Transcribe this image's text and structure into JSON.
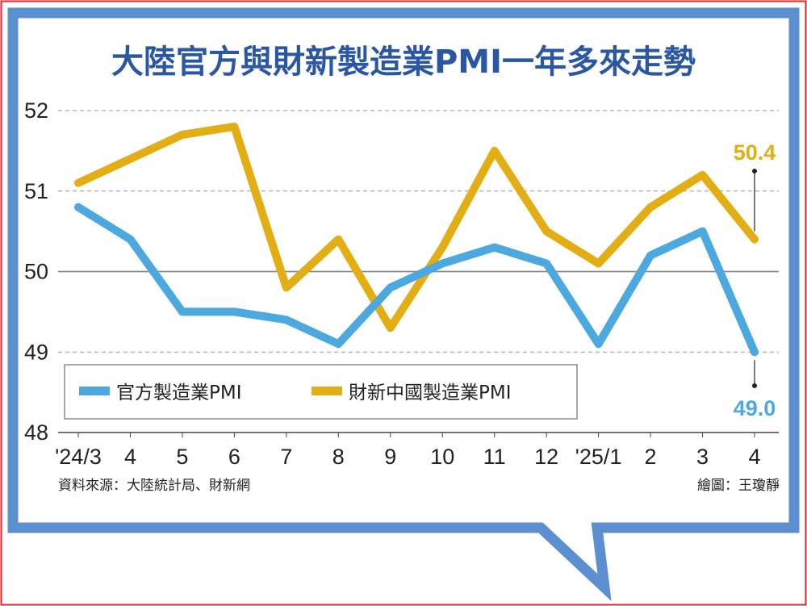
{
  "chart_data": {
    "type": "line",
    "title": "大陸官方與財新製造業PMI一年多來走勢",
    "categories": [
      "'24/3",
      "4",
      "5",
      "6",
      "7",
      "8",
      "9",
      "10",
      "11",
      "12",
      "'25/1",
      "2",
      "3",
      "4"
    ],
    "ylim": [
      48,
      52
    ],
    "yticks": [
      "52",
      "51",
      "50",
      "49",
      "48"
    ],
    "grid": true,
    "legend_position": "bottom-left",
    "series": [
      {
        "name": "官方製造業PMI",
        "color": "#4ba9e0",
        "values": [
          50.8,
          50.4,
          49.5,
          49.5,
          49.4,
          49.1,
          49.8,
          50.1,
          50.3,
          50.1,
          49.1,
          50.2,
          50.5,
          49.0
        ],
        "last_label": "49.0"
      },
      {
        "name": "財新中國製造業PMI",
        "color": "#e2ae14",
        "values": [
          51.1,
          51.4,
          51.7,
          51.8,
          49.8,
          50.4,
          49.3,
          50.3,
          51.5,
          50.5,
          50.1,
          50.8,
          51.2,
          50.4
        ],
        "last_label": "50.4"
      }
    ]
  },
  "notes": {
    "source": "資料來源：大陸統計局、財新網",
    "credit": "繪圖：王瓊靜"
  },
  "colors": {
    "border_red": "#e0262b",
    "bubble_blue": "#5b8fcf",
    "title_blue": "#2a57a3"
  }
}
